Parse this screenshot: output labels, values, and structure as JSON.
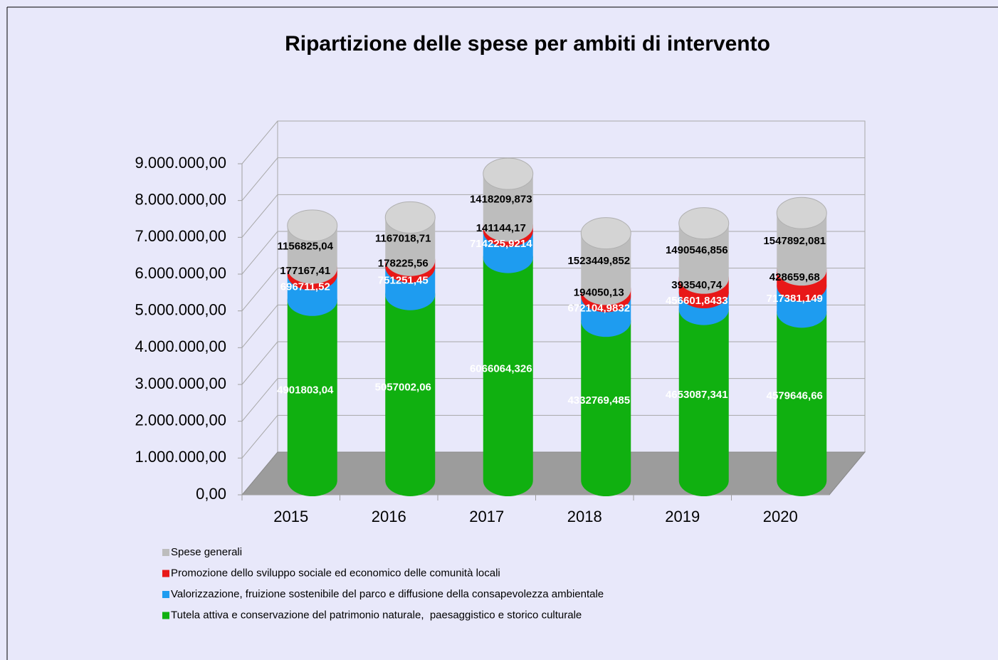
{
  "chart_data": {
    "type": "bar",
    "stacked": true,
    "title": "Ripartizione delle spese per ambiti di intervento",
    "categories": [
      "2015",
      "2016",
      "2017",
      "2018",
      "2019",
      "2020"
    ],
    "series": [
      {
        "name": "Tutela attiva e conservazione del patrimonio naturale,  paesaggistico e storico culturale",
        "color": "#10b010",
        "label_color": "#ffffff",
        "values": [
          4901803.04,
          5057002.06,
          6066064.326,
          4332769.485,
          4653087.341,
          4579646.66
        ],
        "value_labels": [
          "4901803,04",
          "5057002,06",
          "6066064,326",
          "4332769,485",
          "4653087,341",
          "4579646,66"
        ]
      },
      {
        "name": "Valorizzazione, fruizione sostenibile del parco e diffusione della consapevolezza ambientale",
        "color": "#1e9cf0",
        "label_color": "#ffffff",
        "values": [
          696711.52,
          751251.45,
          714225.9214,
          672104.9832,
          456601.8433,
          717381.149
        ],
        "value_labels": [
          "696711,52",
          "751251,45",
          "714225,9214",
          "672104,9832",
          "456601,8433",
          "717381,149"
        ]
      },
      {
        "name": "Promozione dello sviluppo sociale ed economico delle comunità locali",
        "color": "#e81818",
        "label_color": "#000000",
        "values": [
          177167.41,
          178225.56,
          141144.17,
          194050.13,
          393540.74,
          428659.68
        ],
        "value_labels": [
          "177167,41",
          "178225,56",
          "141144,17",
          "194050,13",
          "393540,74",
          "428659,68"
        ]
      },
      {
        "name": "Spese generali",
        "color": "#bdbdbd",
        "label_color": "#000000",
        "values": [
          1156825.04,
          1167018.71,
          1418209.873,
          1523449.852,
          1490546.856,
          1547892.081
        ],
        "value_labels": [
          "1156825,04",
          "1167018,71",
          "1418209,873",
          "1523449,852",
          "1490546,856",
          "1547892,081"
        ]
      }
    ],
    "ylim": [
      0,
      9000000
    ],
    "yticks": [
      {
        "value": 0,
        "label": "0,00"
      },
      {
        "value": 1000000,
        "label": "1.000.000,00"
      },
      {
        "value": 2000000,
        "label": "2.000.000,00"
      },
      {
        "value": 3000000,
        "label": "3.000.000,00"
      },
      {
        "value": 4000000,
        "label": "4.000.000,00"
      },
      {
        "value": 5000000,
        "label": "5.000.000,00"
      },
      {
        "value": 6000000,
        "label": "6.000.000,00"
      },
      {
        "value": 7000000,
        "label": "7.000.000,00"
      },
      {
        "value": 8000000,
        "label": "8.000.000,00"
      },
      {
        "value": 9000000,
        "label": "9.000.000,00"
      }
    ],
    "grid": true,
    "legend": "bottom"
  }
}
